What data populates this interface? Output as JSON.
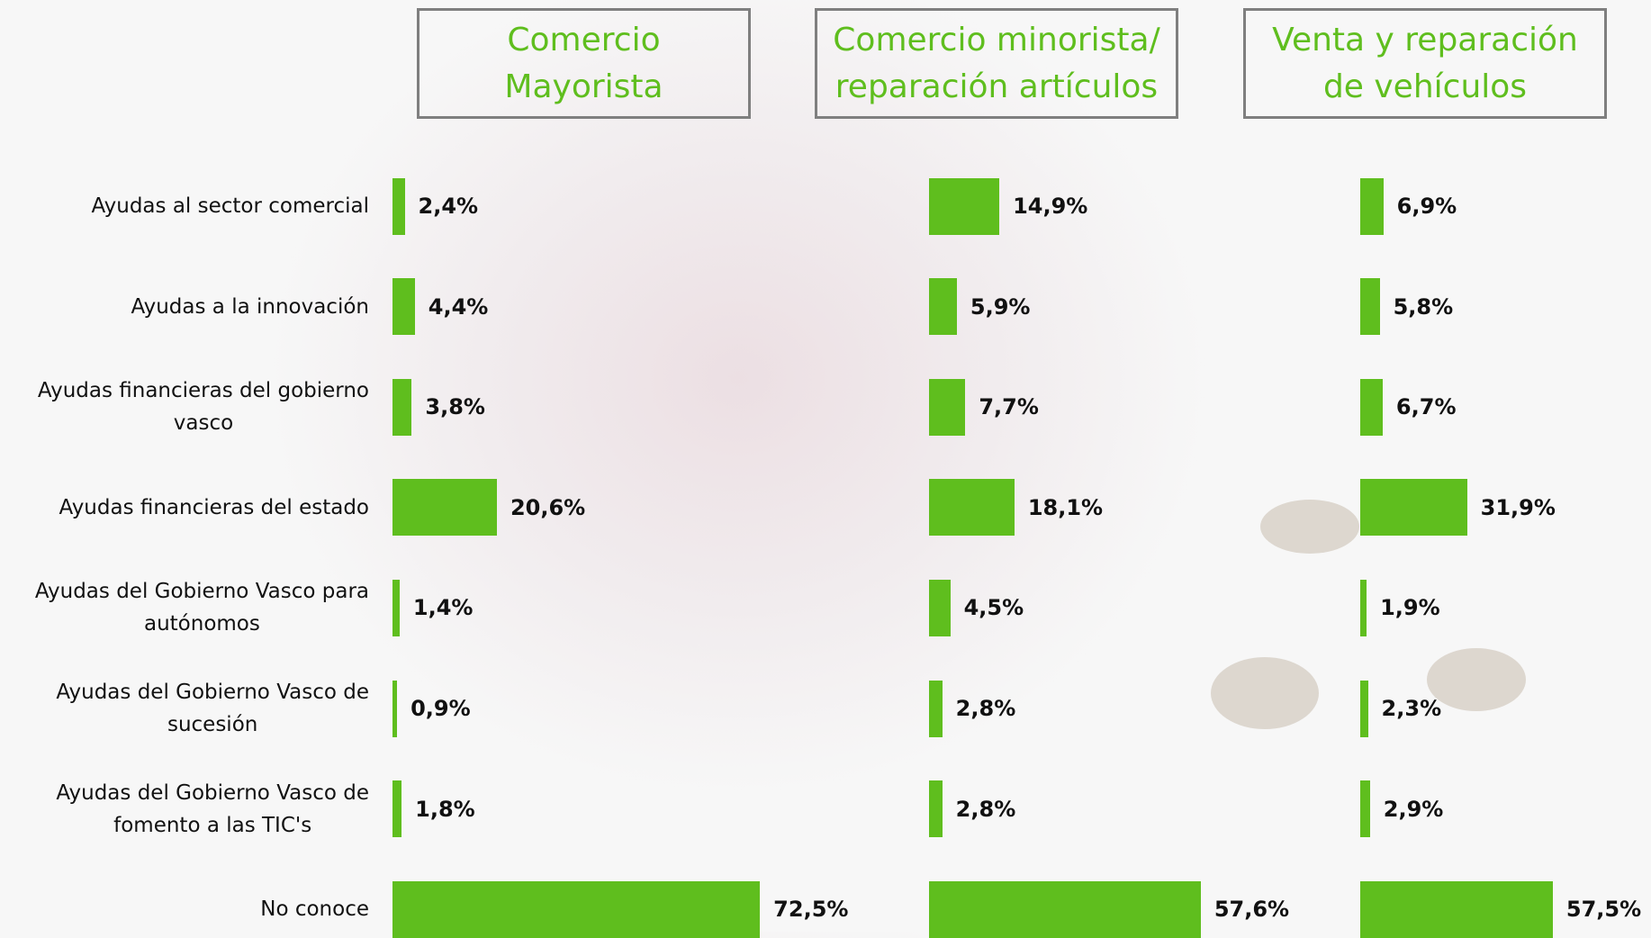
{
  "chart_data": [
    {
      "type": "bar",
      "title": "Comercio\nMayorista",
      "categories": [
        "Ayudas al sector comercial",
        "Ayudas a la innovación",
        "Ayudas financieras del gobierno\nvasco",
        "Ayudas financieras del estado",
        "Ayudas del Gobierno Vasco para\nautónomos",
        "Ayudas del Gobierno Vasco de\nsucesión",
        "Ayudas del Gobierno Vasco de\nfomento a las TIC's",
        "No conoce"
      ],
      "values": [
        2.4,
        4.4,
        3.8,
        20.6,
        1.4,
        0.9,
        1.8,
        72.5
      ],
      "value_labels": [
        "2,4%",
        "4,4%",
        "3,8%",
        "20,6%",
        "1,4%",
        "0,9%",
        "1,8%",
        "72,5%"
      ],
      "color": "#5fbe1e"
    },
    {
      "type": "bar",
      "title": "Comercio minorista/\nreparación artículos",
      "values": [
        14.9,
        5.9,
        7.7,
        18.1,
        4.5,
        2.8,
        2.8,
        57.6
      ],
      "value_labels": [
        "14,9%",
        "5,9%",
        "7,7%",
        "18,1%",
        "4,5%",
        "2,8%",
        "2,8%",
        "57,6%"
      ],
      "color": "#5fbe1e"
    },
    {
      "type": "bar",
      "title": "Venta y reparación\nde vehículos",
      "values": [
        6.9,
        5.8,
        6.7,
        31.9,
        1.9,
        2.3,
        2.9,
        57.5
      ],
      "value_labels": [
        "6,9%",
        "5,8%",
        "6,7%",
        "31,9%",
        "1,9%",
        "2,3%",
        "2,9%",
        "57,5%"
      ],
      "color": "#5fbe1e"
    }
  ]
}
